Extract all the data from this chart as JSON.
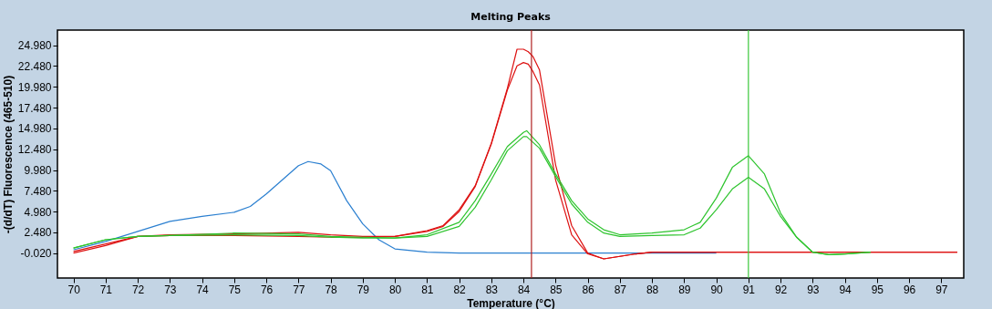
{
  "chart_data": {
    "type": "line",
    "title": "Melting Peaks",
    "xlabel": "Temperature (°C)",
    "ylabel": "-(d/dT) Fluorescence (465-510)",
    "xlim": [
      69.5,
      97.7
    ],
    "ylim": [
      -3.0,
      26.8
    ],
    "xticks": [
      70,
      71,
      72,
      73,
      74,
      75,
      76,
      77,
      78,
      79,
      80,
      81,
      82,
      83,
      84,
      85,
      86,
      87,
      88,
      89,
      90,
      91,
      92,
      93,
      94,
      95,
      96,
      97
    ],
    "yticks": [
      {
        "value": -0.02,
        "label": "-0.020"
      },
      {
        "value": 2.48,
        "label": "2.480"
      },
      {
        "value": 4.98,
        "label": "4.980"
      },
      {
        "value": 7.48,
        "label": "7.480"
      },
      {
        "value": 9.98,
        "label": "9.980"
      },
      {
        "value": 12.48,
        "label": "12.480"
      },
      {
        "value": 14.98,
        "label": "14.980"
      },
      {
        "value": 17.48,
        "label": "17.480"
      },
      {
        "value": 19.98,
        "label": "19.980"
      },
      {
        "value": 22.48,
        "label": "22.480"
      },
      {
        "value": 24.98,
        "label": "24.980"
      }
    ],
    "series": [
      {
        "color": "#2a7fd0",
        "x": [
          70,
          71,
          72,
          73,
          74,
          75,
          75.5,
          76,
          76.5,
          77,
          77.3,
          77.7,
          78,
          78.5,
          79,
          79.5,
          80,
          80.5,
          81,
          82,
          84,
          86,
          88,
          90
        ],
        "values": [
          0.4,
          1.4,
          2.6,
          3.8,
          4.4,
          4.9,
          5.6,
          7.1,
          8.8,
          10.5,
          11.0,
          10.7,
          9.9,
          6.3,
          3.5,
          1.6,
          0.5,
          0.3,
          0.1,
          0.0,
          0.0,
          0.0,
          0.0,
          0.0
        ]
      },
      {
        "color": "#dd1111",
        "x": [
          70,
          71,
          72,
          73,
          75,
          77,
          78,
          79,
          80,
          81,
          81.5,
          82,
          82.5,
          83,
          83.5,
          83.8,
          84,
          84.15,
          84.3,
          84.5,
          85,
          85.5,
          86,
          86.5,
          87,
          87.5,
          88,
          90,
          97.5
        ],
        "values": [
          0.2,
          1.1,
          2.0,
          2.2,
          2.3,
          2.5,
          2.2,
          2.0,
          2.0,
          2.7,
          3.3,
          5.2,
          8.1,
          13.2,
          19.8,
          24.5,
          24.5,
          24.2,
          23.6,
          22.0,
          10.6,
          3.3,
          0.0,
          -0.7,
          -0.4,
          -0.1,
          0.1,
          0.1,
          0.1
        ]
      },
      {
        "color": "#dd1111",
        "x": [
          70,
          71,
          72,
          73,
          75,
          77,
          78,
          79,
          80,
          81,
          81.5,
          82,
          82.5,
          83,
          83.5,
          83.8,
          84,
          84.15,
          84.3,
          84.5,
          85,
          85.5,
          86,
          86.5,
          87,
          87.5,
          88,
          90,
          97.5
        ],
        "values": [
          0.0,
          0.9,
          2.0,
          2.1,
          2.1,
          2.0,
          1.9,
          1.9,
          2.0,
          2.6,
          3.2,
          5.0,
          8.0,
          13.1,
          19.6,
          22.5,
          22.9,
          22.7,
          21.8,
          20.2,
          8.8,
          2.2,
          -0.1,
          -0.7,
          -0.4,
          -0.1,
          0.1,
          0.1,
          0.1
        ]
      },
      {
        "color": "#2ec42e",
        "x": [
          70,
          71,
          72,
          73,
          75,
          77,
          78,
          79,
          80,
          81,
          82,
          82.5,
          83,
          83.5,
          84,
          84.1,
          84.5,
          85,
          85.5,
          86,
          86.5,
          87,
          88,
          89,
          89.5,
          90,
          90.5,
          91,
          91.5,
          92,
          92.5,
          93,
          93.5,
          94,
          94.8
        ],
        "values": [
          0.6,
          1.6,
          2.0,
          2.1,
          2.4,
          2.3,
          2.0,
          1.9,
          1.8,
          2.2,
          3.7,
          6.3,
          9.5,
          12.8,
          14.5,
          14.7,
          13.0,
          9.5,
          6.3,
          4.1,
          2.8,
          2.2,
          2.4,
          2.8,
          3.7,
          6.6,
          10.3,
          11.7,
          9.5,
          4.8,
          1.9,
          0.1,
          -0.2,
          -0.1,
          0.1
        ]
      },
      {
        "color": "#2ec42e",
        "x": [
          70,
          71,
          72,
          73,
          75,
          77,
          78,
          79,
          80,
          81,
          82,
          82.5,
          83,
          83.5,
          84,
          84.1,
          84.5,
          85,
          85.5,
          86,
          86.5,
          87,
          88,
          89,
          89.5,
          90,
          90.5,
          91,
          91.5,
          92,
          92.5,
          93,
          93.5,
          94,
          94.8
        ],
        "values": [
          0.6,
          1.6,
          2.0,
          2.1,
          2.2,
          2.1,
          1.9,
          1.8,
          1.8,
          2.0,
          3.2,
          5.5,
          8.8,
          12.3,
          14.0,
          14.0,
          12.6,
          9.2,
          5.9,
          3.7,
          2.4,
          2.0,
          2.1,
          2.2,
          3.0,
          5.2,
          7.7,
          9.1,
          7.7,
          4.4,
          1.9,
          0.1,
          -0.2,
          -0.1,
          0.1
        ]
      }
    ],
    "ref_lines": [
      {
        "axis": "x",
        "value": 84.25,
        "color": "#b02020"
      },
      {
        "axis": "x",
        "value": 91.0,
        "color": "#3cc83c"
      }
    ]
  }
}
